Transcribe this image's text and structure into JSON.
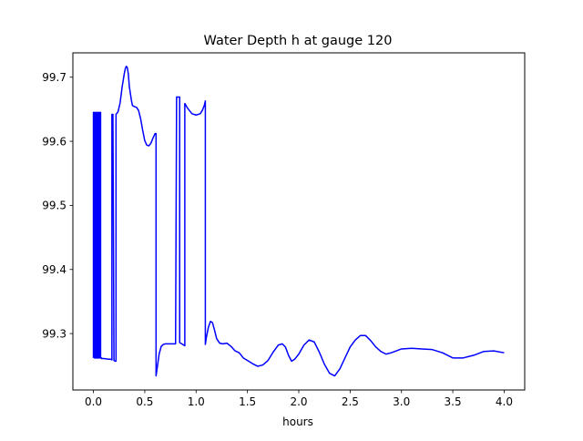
{
  "chart_data": {
    "type": "line",
    "title": "Water Depth h at gauge 120",
    "xlabel": "hours",
    "ylabel": "",
    "xlim": [
      -0.2,
      4.2
    ],
    "ylim": [
      99.212,
      99.738
    ],
    "x_ticks": [
      0.0,
      0.5,
      1.0,
      1.5,
      2.0,
      2.5,
      3.0,
      3.5,
      4.0
    ],
    "x_tick_labels": [
      "0.0",
      "0.5",
      "1.0",
      "1.5",
      "2.0",
      "2.5",
      "3.0",
      "3.5",
      "4.0"
    ],
    "y_ticks": [
      99.3,
      99.4,
      99.5,
      99.6,
      99.7
    ],
    "y_tick_labels": [
      "99.3",
      "99.4",
      "99.5",
      "99.6",
      "99.7"
    ],
    "grid": false,
    "legend": "none",
    "series": [
      {
        "color": "#0000ff",
        "x": [
          0.0,
          0.0,
          0.01,
          0.01,
          0.02,
          0.02,
          0.03,
          0.03,
          0.04,
          0.04,
          0.05,
          0.05,
          0.06,
          0.06,
          0.07,
          0.07,
          0.08,
          0.08,
          0.1,
          0.15,
          0.17,
          0.18,
          0.18,
          0.19,
          0.2,
          0.21,
          0.22,
          0.22,
          0.24,
          0.26,
          0.28,
          0.3,
          0.31,
          0.32,
          0.33,
          0.34,
          0.35,
          0.37,
          0.38,
          0.4,
          0.42,
          0.44,
          0.46,
          0.48,
          0.5,
          0.52,
          0.54,
          0.56,
          0.58,
          0.6,
          0.61,
          0.61,
          0.62,
          0.64,
          0.66,
          0.68,
          0.7,
          0.72,
          0.75,
          0.78,
          0.8,
          0.81,
          0.81,
          0.84,
          0.84,
          0.85,
          0.88,
          0.89,
          0.89,
          0.92,
          0.96,
          1.0,
          1.04,
          1.06,
          1.08,
          1.09,
          1.09,
          1.1,
          1.12,
          1.14,
          1.16,
          1.18,
          1.2,
          1.23,
          1.26,
          1.3,
          1.34,
          1.38,
          1.42,
          1.46,
          1.5,
          1.55,
          1.6,
          1.65,
          1.7,
          1.75,
          1.8,
          1.84,
          1.87,
          1.9,
          1.93,
          1.96,
          2.0,
          2.05,
          2.1,
          2.15,
          2.2,
          2.25,
          2.3,
          2.35,
          2.4,
          2.45,
          2.5,
          2.55,
          2.6,
          2.65,
          2.7,
          2.75,
          2.8,
          2.85,
          2.9,
          3.0,
          3.1,
          3.2,
          3.3,
          3.4,
          3.5,
          3.6,
          3.7,
          3.8,
          3.9,
          4.0
        ],
        "y": [
          99.262,
          99.645,
          99.645,
          99.262,
          99.262,
          99.645,
          99.645,
          99.262,
          99.262,
          99.645,
          99.645,
          99.262,
          99.262,
          99.645,
          99.645,
          99.262,
          99.262,
          99.261,
          99.261,
          99.26,
          99.26,
          99.259,
          99.642,
          99.642,
          99.258,
          99.257,
          99.257,
          99.642,
          99.646,
          99.66,
          99.685,
          99.705,
          99.713,
          99.717,
          99.715,
          99.705,
          99.685,
          99.664,
          99.656,
          99.654,
          99.653,
          99.648,
          99.635,
          99.617,
          99.601,
          99.594,
          99.593,
          99.597,
          99.605,
          99.612,
          99.612,
          99.234,
          99.245,
          99.268,
          99.28,
          99.283,
          99.284,
          99.284,
          99.284,
          99.284,
          99.284,
          99.669,
          99.669,
          99.669,
          99.286,
          99.285,
          99.282,
          99.281,
          99.659,
          99.651,
          99.643,
          99.641,
          99.643,
          99.648,
          99.656,
          99.663,
          99.283,
          99.294,
          99.31,
          99.319,
          99.317,
          99.305,
          99.292,
          99.285,
          99.284,
          99.285,
          99.28,
          99.273,
          99.27,
          99.262,
          99.258,
          99.253,
          99.249,
          99.251,
          99.258,
          99.271,
          99.282,
          99.284,
          99.279,
          99.266,
          99.257,
          99.26,
          99.268,
          99.282,
          99.29,
          99.287,
          99.271,
          99.252,
          99.238,
          99.234,
          99.245,
          99.262,
          99.279,
          99.29,
          99.297,
          99.297,
          99.289,
          99.279,
          99.272,
          99.268,
          99.27,
          99.276,
          99.277,
          99.276,
          99.275,
          99.27,
          99.262,
          99.262,
          99.266,
          99.272,
          99.273,
          99.27
        ]
      }
    ]
  }
}
